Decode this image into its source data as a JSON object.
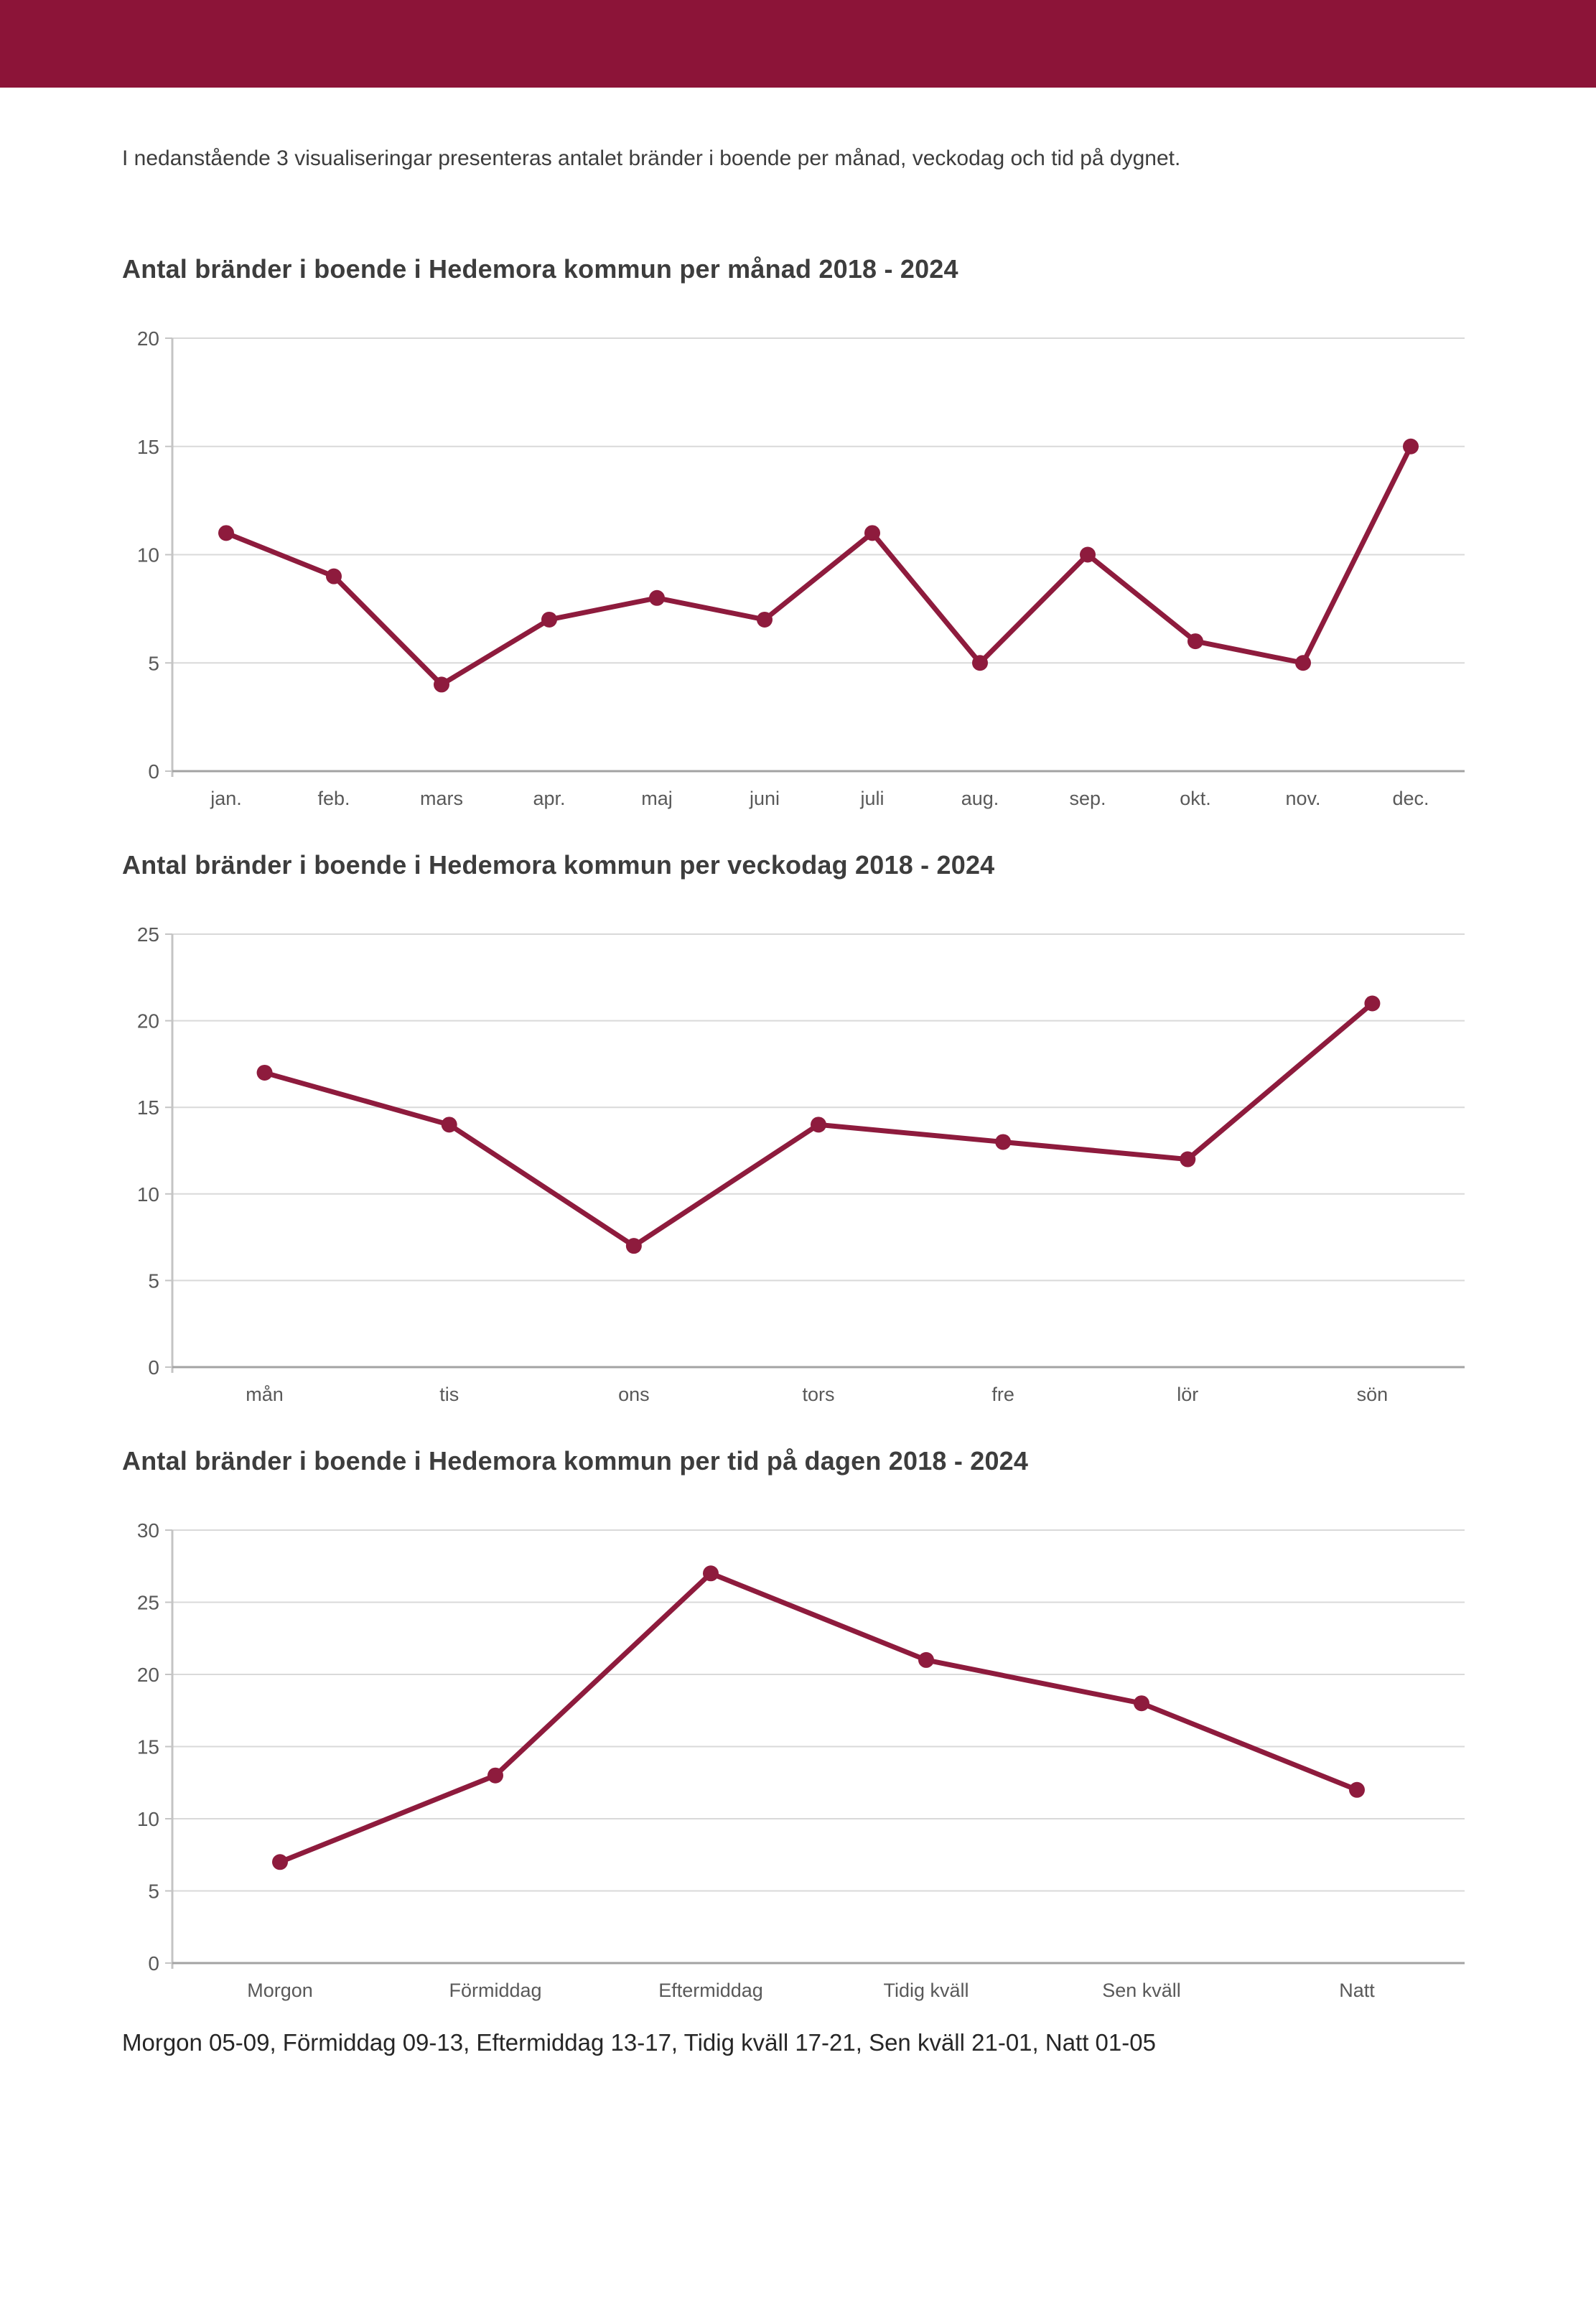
{
  "page": {
    "banner_color": "#8C1438",
    "background_color": "#ffffff"
  },
  "intro": {
    "text": "I nedanstående 3 visualiseringar presenteras antalet bränder i boende per månad, veckodag och tid på dygnet."
  },
  "chart_data": [
    {
      "type": "line",
      "title": "Antal bränder i boende i Hedemora kommun per månad 2018 - 2024",
      "categories": [
        "jan.",
        "feb.",
        "mars",
        "apr.",
        "maj",
        "juni",
        "juli",
        "aug.",
        "sep.",
        "okt.",
        "nov.",
        "dec."
      ],
      "values": [
        11,
        9,
        4,
        7,
        8,
        7,
        11,
        5,
        10,
        6,
        5,
        15
      ],
      "xlabel": "",
      "ylabel": "",
      "ylim": [
        0,
        20
      ],
      "ytick_step": 5,
      "grid": "horizontal",
      "legend": "none",
      "line_color": "#8E1B3D"
    },
    {
      "type": "line",
      "title": "Antal bränder i boende i Hedemora kommun per veckodag 2018 - 2024",
      "categories": [
        "mån",
        "tis",
        "ons",
        "tors",
        "fre",
        "lör",
        "sön"
      ],
      "values": [
        17,
        14,
        7,
        14,
        13,
        12,
        21
      ],
      "xlabel": "",
      "ylabel": "",
      "ylim": [
        0,
        25
      ],
      "ytick_step": 5,
      "grid": "horizontal",
      "legend": "none",
      "line_color": "#8E1B3D"
    },
    {
      "type": "line",
      "title": "Antal bränder i boende i Hedemora kommun per tid på dagen 2018 - 2024",
      "categories": [
        "Morgon",
        "Förmiddag",
        "Eftermiddag",
        "Tidig kväll",
        "Sen kväll",
        "Natt"
      ],
      "values": [
        7,
        13,
        27,
        21,
        18,
        12
      ],
      "xlabel": "",
      "ylabel": "",
      "ylim": [
        0,
        30
      ],
      "ytick_step": 5,
      "grid": "horizontal",
      "legend": "none",
      "line_color": "#8E1B3D"
    }
  ],
  "footer": {
    "note": "Morgon 05-09, Förmiddag 09-13, Eftermiddag 13-17, Tidig kväll 17-21, Sen kväll 21-01, Natt 01-05"
  }
}
